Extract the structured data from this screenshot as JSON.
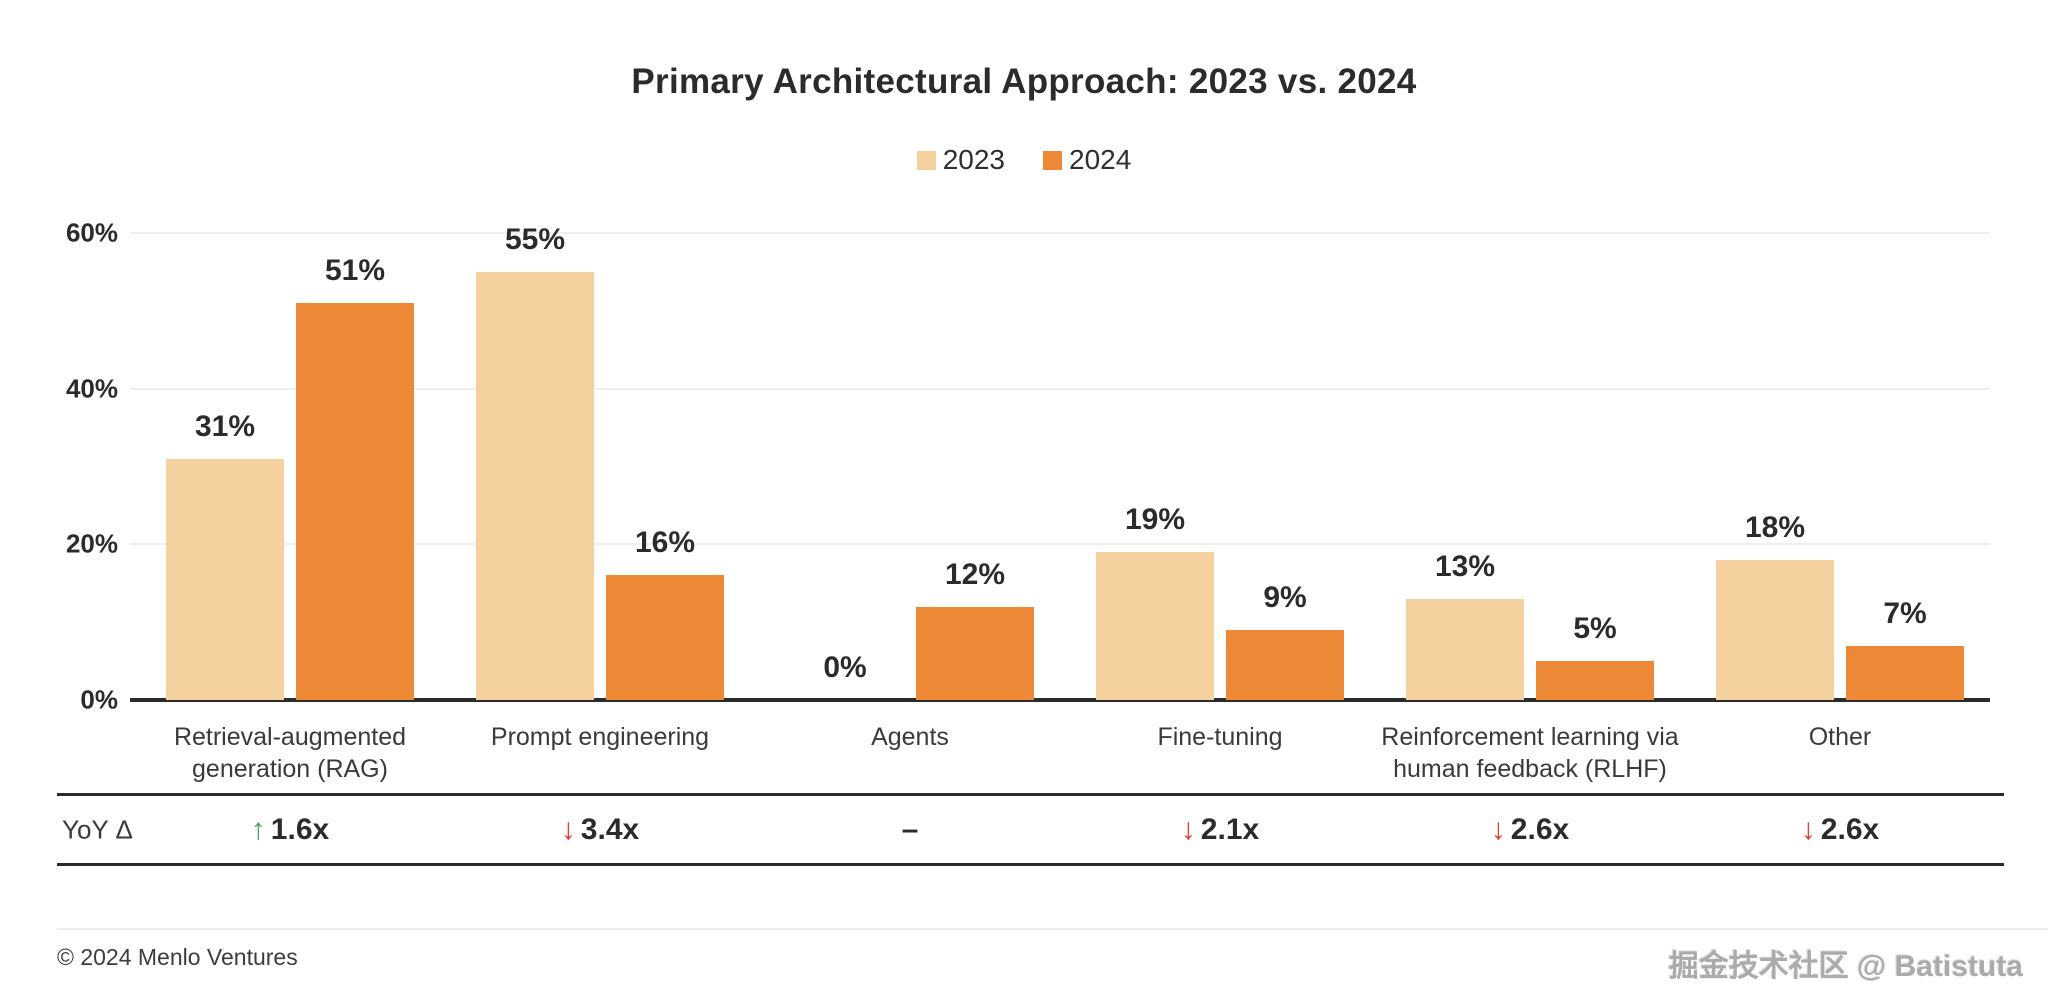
{
  "title": "Primary Architectural Approach: 2023 vs. 2024",
  "chart_data": {
    "type": "bar",
    "title": "Primary Architectural Approach: 2023 vs. 2024",
    "categories": [
      "Retrieval-augmented generation (RAG)",
      "Prompt engineering",
      "Agents",
      "Fine-tuning",
      "Reinforcement learning via human feedback (RLHF)",
      "Other"
    ],
    "categories_wrapped": [
      [
        "Retrieval-augmented",
        "generation (RAG)"
      ],
      [
        "Prompt engineering"
      ],
      [
        "Agents"
      ],
      [
        "Fine-tuning"
      ],
      [
        "Reinforcement learning via",
        "human feedback (RLHF)"
      ],
      [
        "Other"
      ]
    ],
    "series": [
      {
        "name": "2023",
        "color": "#F5D1A0",
        "values": [
          31,
          55,
          0,
          19,
          13,
          18
        ]
      },
      {
        "name": "2024",
        "color": "#ED8936",
        "values": [
          51,
          16,
          12,
          9,
          5,
          7
        ]
      }
    ],
    "value_suffix": "%",
    "ylim": [
      0,
      60
    ],
    "yticks": [
      0,
      20,
      40,
      60
    ],
    "ytick_labels": [
      "0%",
      "20%",
      "40%",
      "60%"
    ],
    "grid": true,
    "legend_position": "top"
  },
  "yoy": {
    "row_label": "YoY Δ",
    "cells": [
      {
        "direction": "up",
        "label": "1.6x"
      },
      {
        "direction": "down",
        "label": "3.4x"
      },
      {
        "direction": "flat",
        "label": "–"
      },
      {
        "direction": "down",
        "label": "2.1x"
      },
      {
        "direction": "down",
        "label": "2.6x"
      },
      {
        "direction": "down",
        "label": "2.6x"
      }
    ],
    "colors": {
      "up": "#47A44F",
      "down": "#E8362D",
      "flat": "#2b2b2e"
    }
  },
  "footer": {
    "copyright": "© 2024 Menlo Ventures",
    "watermark": "掘金技术社区 @ Batistuta"
  }
}
